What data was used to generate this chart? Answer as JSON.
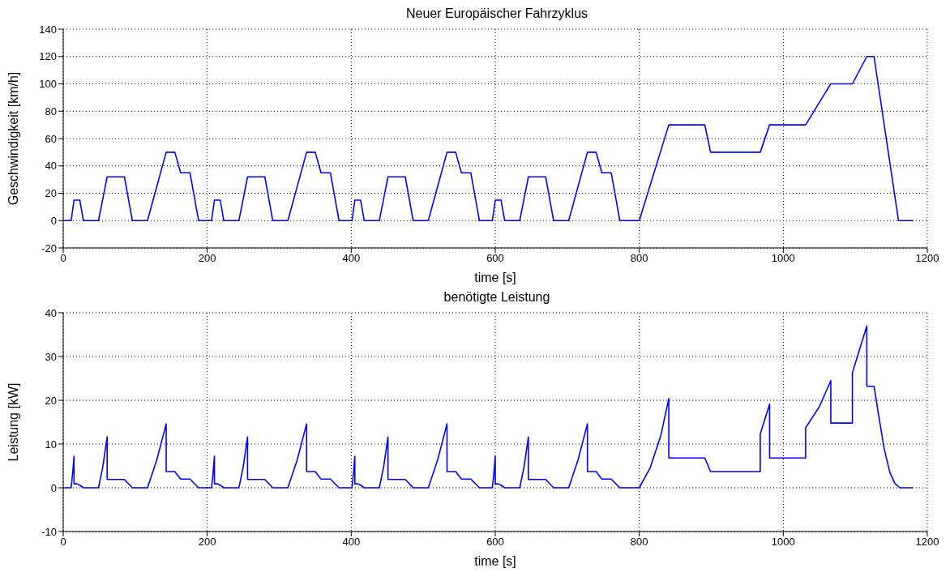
{
  "chart_data": [
    {
      "type": "line",
      "title": "Neuer Europäischer Fahrzyklus",
      "xlabel": "time [s]",
      "ylabel": "Geschwindigkeit [km/h]",
      "xlim": [
        0,
        1200
      ],
      "xticks": [
        0,
        200,
        400,
        600,
        800,
        1000,
        1200
      ],
      "ylim": [
        -20,
        140
      ],
      "yticks": [
        -20,
        0,
        20,
        40,
        60,
        80,
        100,
        120,
        140
      ],
      "grid": true,
      "legend": false,
      "marker": "none",
      "line_style": "solid",
      "series": [
        {
          "color": "#0000ff",
          "x": [
            0,
            11,
            15,
            23,
            28,
            49,
            61,
            85,
            96,
            117,
            143,
            155,
            163,
            176,
            188,
            195,
            206,
            210,
            218,
            223,
            244,
            256,
            280,
            291,
            312,
            338,
            350,
            358,
            371,
            383,
            390,
            401,
            405,
            413,
            418,
            439,
            451,
            475,
            486,
            507,
            533,
            545,
            553,
            566,
            578,
            585,
            596,
            600,
            608,
            613,
            634,
            646,
            670,
            681,
            702,
            728,
            740,
            748,
            761,
            773,
            780,
            800,
            841,
            891,
            899,
            968,
            981,
            1031,
            1066,
            1096,
            1116,
            1126,
            1160,
            1180
          ],
          "values": [
            0,
            0,
            15,
            15,
            0,
            0,
            32,
            32,
            0,
            0,
            50,
            50,
            35,
            35,
            0,
            0,
            0,
            15,
            15,
            0,
            0,
            32,
            32,
            0,
            0,
            50,
            50,
            35,
            35,
            0,
            0,
            0,
            15,
            15,
            0,
            0,
            32,
            32,
            0,
            0,
            50,
            50,
            35,
            35,
            0,
            0,
            0,
            15,
            15,
            0,
            0,
            32,
            32,
            0,
            0,
            50,
            50,
            35,
            35,
            0,
            0,
            0,
            70,
            70,
            50,
            50,
            70,
            70,
            100,
            100,
            120,
            120,
            0,
            0
          ]
        }
      ]
    },
    {
      "type": "line",
      "title": "benötigte Leistung",
      "xlabel": "time [s]",
      "ylabel": "Leistung [kW]",
      "xlim": [
        0,
        1200
      ],
      "xticks": [
        0,
        200,
        400,
        600,
        800,
        1000,
        1200
      ],
      "ylim": [
        -10,
        40
      ],
      "yticks": [
        -10,
        0,
        10,
        20,
        30,
        40
      ],
      "grid": true,
      "legend": false,
      "marker": "none",
      "line_style": "solid",
      "series": [
        {
          "color": "#0000ff",
          "x": [
            0,
            11,
            13,
            15,
            15,
            19,
            23,
            28,
            49,
            55,
            61,
            61,
            85,
            96,
            117,
            130,
            143,
            143,
            155,
            163,
            176,
            188,
            195,
            206,
            208,
            210,
            210,
            214,
            218,
            223,
            244,
            250,
            256,
            256,
            280,
            291,
            312,
            325,
            338,
            338,
            350,
            358,
            371,
            383,
            390,
            401,
            403,
            405,
            405,
            409,
            413,
            418,
            439,
            445,
            451,
            451,
            475,
            486,
            507,
            520,
            533,
            533,
            545,
            553,
            566,
            578,
            585,
            596,
            598,
            600,
            600,
            604,
            608,
            613,
            634,
            640,
            646,
            646,
            670,
            681,
            702,
            715,
            728,
            728,
            740,
            748,
            761,
            773,
            780,
            800,
            815,
            830,
            841,
            841,
            891,
            899,
            968,
            968,
            981,
            981,
            1031,
            1031,
            1050,
            1066,
            1066,
            1096,
            1096,
            1116,
            1116,
            1126,
            1132,
            1140,
            1148,
            1155,
            1162,
            1180
          ],
          "values": [
            0,
            0,
            3.2,
            7.2,
            0.9,
            0.9,
            0.6,
            0,
            0,
            4.8,
            11.6,
            1.9,
            1.9,
            0,
            0,
            6.4,
            14.6,
            3.7,
            3.7,
            2,
            2,
            0,
            0,
            0,
            3.2,
            7.2,
            0.9,
            0.9,
            0.6,
            0,
            0,
            4.8,
            11.6,
            1.9,
            1.9,
            0,
            0,
            6.4,
            14.6,
            3.7,
            3.7,
            2,
            2,
            0,
            0,
            0,
            3.2,
            7.2,
            0.9,
            0.9,
            0.6,
            0,
            0,
            4.8,
            11.6,
            1.9,
            1.9,
            0,
            0,
            6.4,
            14.6,
            3.7,
            3.7,
            2,
            2,
            0,
            0,
            0,
            3.2,
            7.2,
            0.9,
            0.9,
            0.6,
            0,
            0,
            4.8,
            11.6,
            1.9,
            1.9,
            0,
            0,
            6.4,
            14.6,
            3.7,
            3.7,
            2,
            2,
            0,
            0,
            0,
            4.5,
            12,
            20.4,
            6.8,
            6.8,
            3.7,
            3.7,
            12.3,
            19.1,
            6.8,
            6.8,
            13.7,
            18.5,
            24.5,
            14.8,
            14.8,
            26.3,
            37,
            23.2,
            23.2,
            17,
            9,
            3.5,
            1,
            0,
            0
          ]
        }
      ]
    }
  ]
}
